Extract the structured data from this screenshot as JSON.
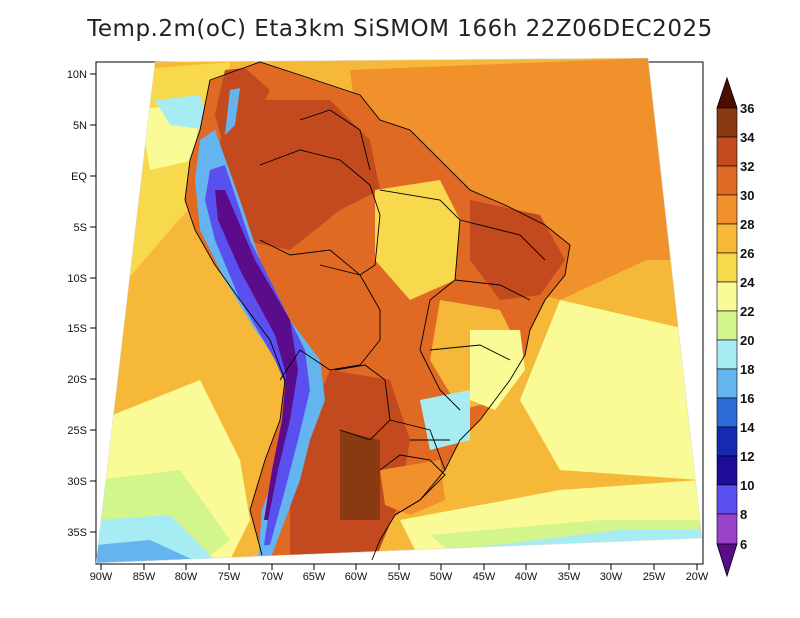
{
  "title": "Temp.2m(oC) Eta3km SiSMOM 166h 22Z06DEC2025",
  "map": {
    "lon_ticks": [
      "90W",
      "85W",
      "80W",
      "75W",
      "70W",
      "65W",
      "60W",
      "55W",
      "50W",
      "45W",
      "40W",
      "35W",
      "30W",
      "25W",
      "20W"
    ],
    "lat_ticks": [
      "10N",
      "5N",
      "EQ",
      "5S",
      "10S",
      "15S",
      "20S",
      "25S",
      "30S",
      "35S"
    ]
  },
  "colorbar": {
    "labels": [
      "36",
      "34",
      "32",
      "30",
      "28",
      "26",
      "24",
      "22",
      "20",
      "18",
      "16",
      "14",
      "12",
      "10",
      "8",
      "6"
    ],
    "colors": [
      "#4a0d00",
      "#8a3a12",
      "#c24a1e",
      "#e06a24",
      "#f0912c",
      "#f6b838",
      "#f8d84c",
      "#fafa96",
      "#d2f58c",
      "#a6ecf2",
      "#64b4f0",
      "#2c6ad8",
      "#142ab0",
      "#1c0c98",
      "#5a50f0",
      "#9a42c8",
      "#5a0c8a"
    ]
  }
}
